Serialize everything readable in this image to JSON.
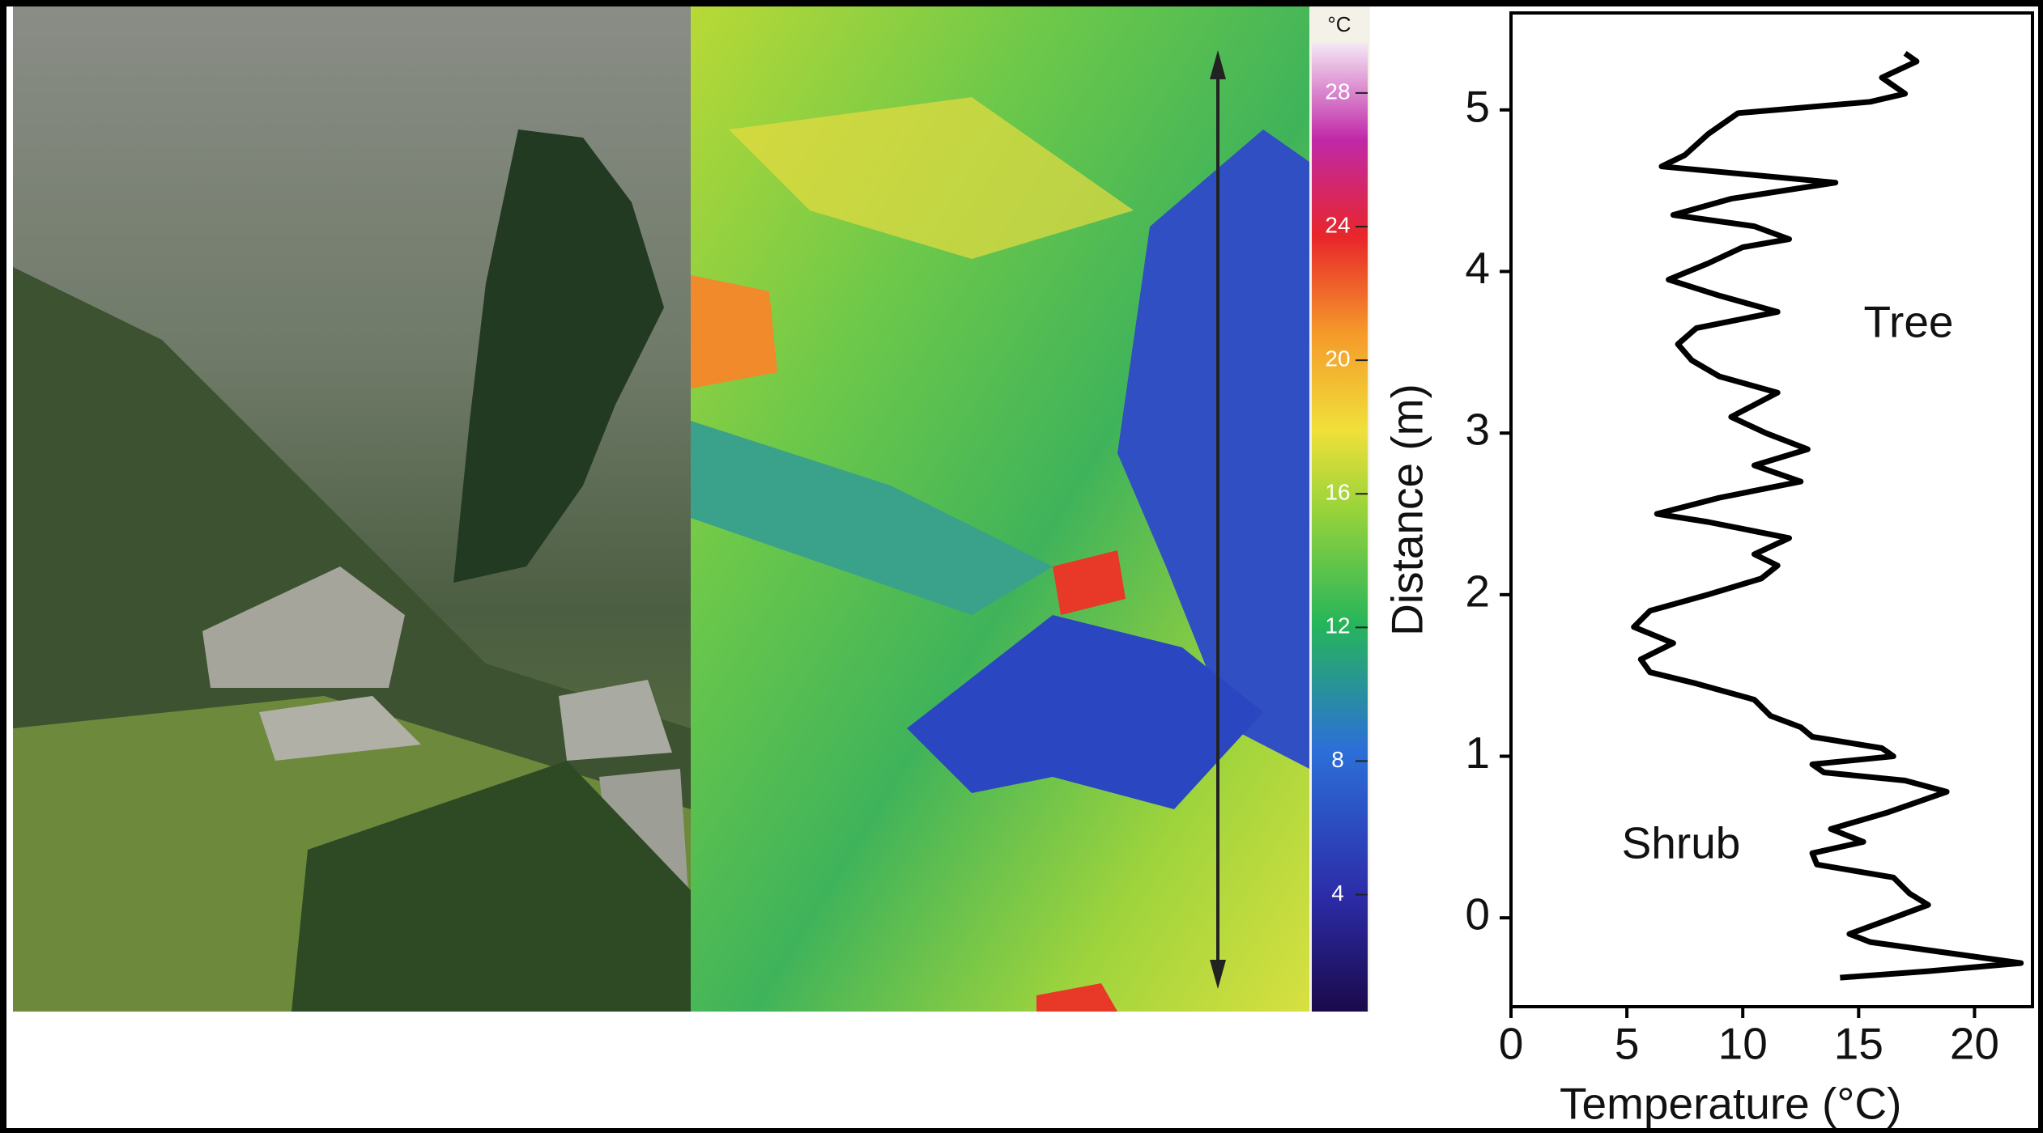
{
  "chart_data": [
    {
      "type": "line",
      "xlabel": "Temperature (°C)",
      "ylabel": "Distance (m)",
      "annotations": [
        "Tree",
        "Shrub"
      ],
      "xlim": [
        0,
        22.5
      ],
      "xticks": [
        0,
        5,
        10,
        15,
        20
      ],
      "ylim": [
        -0.55,
        5.6
      ],
      "yticks": [
        0,
        1,
        2,
        3,
        4,
        5
      ],
      "series": [
        {
          "color": "#000000",
          "y": [
            -0.37,
            -0.33,
            -0.28,
            -0.22,
            -0.15,
            -0.1,
            0.0,
            0.08,
            0.15,
            0.25,
            0.33,
            0.4,
            0.47,
            0.55,
            0.65,
            0.78,
            0.85,
            0.9,
            0.95,
            1.0,
            1.05,
            1.12,
            1.18,
            1.25,
            1.35,
            1.45,
            1.52,
            1.6,
            1.7,
            1.8,
            1.9,
            2.0,
            2.1,
            2.18,
            2.25,
            2.35,
            2.45,
            2.5,
            2.6,
            2.7,
            2.8,
            2.9,
            3.0,
            3.1,
            3.25,
            3.35,
            3.45,
            3.55,
            3.65,
            3.75,
            3.85,
            3.95,
            4.05,
            4.15,
            4.2,
            4.28,
            4.35,
            4.45,
            4.55,
            4.65,
            4.72,
            4.85,
            4.98,
            5.05,
            5.1,
            5.2,
            5.3,
            5.35
          ],
          "values": [
            14.2,
            18,
            22.0,
            19,
            15.5,
            14.6,
            16.5,
            18.0,
            17.2,
            16.5,
            13.2,
            13.0,
            15.2,
            13.8,
            16.2,
            18.8,
            17.0,
            13.5,
            13.0,
            16.5,
            16.0,
            13.0,
            12.5,
            11.2,
            10.5,
            8.0,
            6.0,
            5.6,
            7.0,
            5.3,
            6.0,
            8.5,
            10.8,
            11.5,
            10.5,
            12.0,
            8.5,
            6.3,
            9.0,
            12.5,
            10.5,
            12.8,
            11.0,
            9.5,
            11.5,
            9.0,
            7.8,
            7.2,
            8.0,
            11.5,
            9.0,
            6.8,
            8.5,
            10.0,
            12.0,
            10.5,
            7.0,
            9.5,
            14.0,
            6.5,
            7.5,
            8.5,
            9.8,
            15.5,
            17.0,
            16.0,
            17.5,
            17.0
          ]
        }
      ]
    },
    {
      "type": "colorbar",
      "title": "°C",
      "ylim": [
        0.5,
        29.5
      ],
      "yticks": [
        4,
        8,
        12,
        16,
        20,
        24,
        28
      ]
    }
  ]
}
